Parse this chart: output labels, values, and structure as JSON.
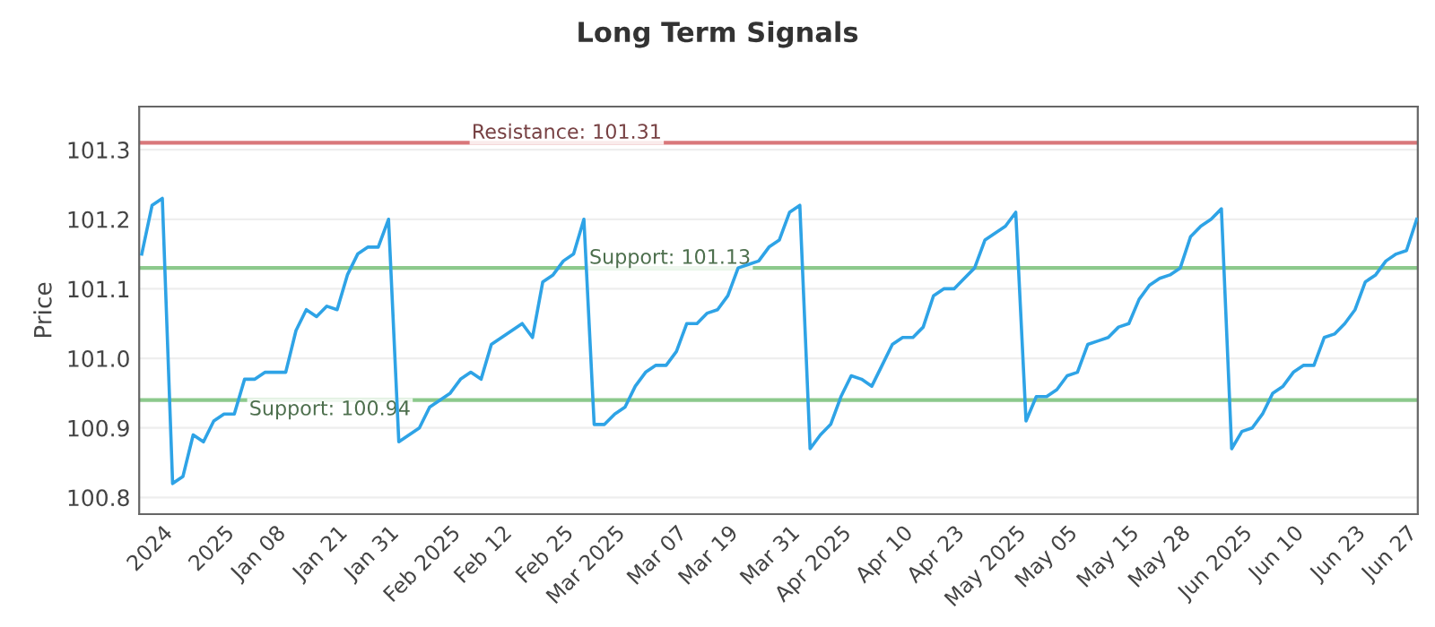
{
  "chart_data": {
    "type": "line",
    "title": "Long Term Signals",
    "ylabel": "Price",
    "categories": [
      null,
      null,
      "2024",
      null,
      null,
      null,
      null,
      null,
      "2025",
      null,
      null,
      null,
      null,
      "Jan 08",
      null,
      null,
      null,
      null,
      null,
      "Jan 21",
      null,
      null,
      null,
      null,
      "Jan 31",
      null,
      null,
      null,
      null,
      null,
      "Feb 2025",
      null,
      null,
      null,
      null,
      "Feb 12",
      null,
      null,
      null,
      null,
      null,
      "Feb 25",
      null,
      null,
      null,
      null,
      "Mar 2025",
      null,
      null,
      null,
      null,
      null,
      "Mar 07",
      null,
      null,
      null,
      null,
      "Mar 19",
      null,
      null,
      null,
      null,
      null,
      "Mar 31",
      null,
      null,
      null,
      null,
      "Apr 2025",
      null,
      null,
      null,
      null,
      null,
      "Apr 10",
      null,
      null,
      null,
      null,
      "Apr 23",
      null,
      null,
      null,
      null,
      null,
      "May 2025",
      null,
      null,
      null,
      null,
      "May 05",
      null,
      null,
      null,
      null,
      null,
      "May 15",
      null,
      null,
      null,
      null,
      "May 28",
      null,
      null,
      null,
      null,
      null,
      "Jun 2025",
      null,
      null,
      null,
      null,
      "Jun 10",
      null,
      null,
      null,
      null,
      null,
      "Jun 23",
      null,
      null,
      null,
      null,
      "Jun 27",
      null
    ],
    "series": [
      {
        "color": "#2ea3e6",
        "values": [
          101.15,
          101.22,
          101.23,
          100.82,
          100.83,
          100.89,
          100.88,
          100.91,
          100.92,
          100.92,
          100.97,
          100.97,
          100.98,
          100.98,
          100.98,
          101.04,
          101.07,
          101.06,
          101.075,
          101.07,
          101.12,
          101.15,
          101.16,
          101.16,
          101.2,
          100.88,
          100.89,
          100.9,
          100.93,
          100.94,
          100.95,
          100.97,
          100.98,
          100.97,
          101.02,
          101.03,
          101.04,
          101.05,
          101.03,
          101.11,
          101.12,
          101.14,
          101.15,
          101.2,
          100.905,
          100.905,
          100.92,
          100.93,
          100.96,
          100.98,
          100.99,
          100.99,
          101.01,
          101.05,
          101.05,
          101.065,
          101.07,
          101.09,
          101.13,
          101.135,
          101.14,
          101.16,
          101.17,
          101.21,
          101.22,
          100.87,
          100.89,
          100.905,
          100.945,
          100.975,
          100.97,
          100.96,
          100.99,
          101.02,
          101.03,
          101.03,
          101.045,
          101.09,
          101.1,
          101.1,
          101.115,
          101.13,
          101.17,
          101.18,
          101.19,
          101.21,
          100.91,
          100.945,
          100.945,
          100.955,
          100.975,
          100.98,
          101.02,
          101.025,
          101.03,
          101.045,
          101.05,
          101.085,
          101.105,
          101.115,
          101.12,
          101.13,
          101.175,
          101.19,
          101.2,
          101.215,
          100.87,
          100.895,
          100.9,
          100.92,
          100.95,
          100.96,
          100.98,
          100.99,
          100.99,
          101.03,
          101.035,
          101.05,
          101.07,
          101.11,
          101.12,
          101.14,
          101.15,
          101.155,
          101.2
        ]
      }
    ],
    "ylim": [
      100.776,
      101.362
    ],
    "yticks": [
      {
        "value": 100.8,
        "label": "100.8"
      },
      {
        "value": 100.9,
        "label": "100.9"
      },
      {
        "value": 101.0,
        "label": "101.0"
      },
      {
        "value": 101.1,
        "label": "101.1"
      },
      {
        "value": 101.2,
        "label": "101.2"
      },
      {
        "value": 101.3,
        "label": "101.3"
      }
    ],
    "grid": "y",
    "marker": "none",
    "line_style": "solid",
    "ref_lines": [
      {
        "axis": "y",
        "value": 101.31,
        "label": "Resistance: 101.31",
        "color": "#d9777a"
      },
      {
        "axis": "y",
        "value": 101.13,
        "label": "Support: 101.13",
        "color": "#8cc98c"
      },
      {
        "axis": "y",
        "value": 100.94,
        "label": "Support: 100.94",
        "color": "#8cc98c"
      }
    ]
  }
}
